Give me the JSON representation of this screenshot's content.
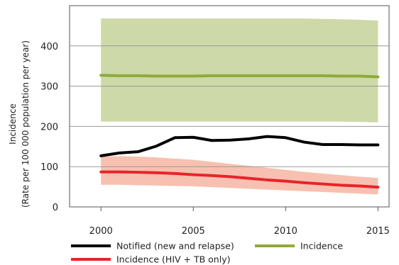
{
  "chart_data": {
    "type": "line",
    "title": "",
    "ylabel_line1": "Incidence",
    "ylabel_line2": "(Rate per 100 000 population per year)",
    "xlabel": "",
    "xlim": [
      1998.3,
      2015.6
    ],
    "ylim": [
      0,
      500
    ],
    "xticks": [
      2000,
      2005,
      2010,
      2015
    ],
    "yticks": [
      0,
      100,
      200,
      300,
      400
    ],
    "grid": "horizontal",
    "legend_position": "bottom",
    "colors": {
      "incidence_band": "#cdd9a8",
      "incidence_line": "#8faa3a",
      "notified_line": "#000000",
      "hivtb_band": "#f8c0b0",
      "hivtb_line": "#e8242a",
      "grid": "#999999",
      "axis": "#555555"
    },
    "years": [
      2000,
      2001,
      2002,
      2003,
      2004,
      2005,
      2006,
      2007,
      2008,
      2009,
      2010,
      2011,
      2012,
      2013,
      2014,
      2015
    ],
    "series": [
      {
        "name": "Incidence",
        "key": "incidence",
        "values": [
          327,
          326,
          326,
          325,
          325,
          325,
          326,
          326,
          326,
          326,
          326,
          326,
          326,
          325,
          325,
          323
        ],
        "lower": [
          212,
          212,
          212,
          212,
          212,
          212,
          212,
          212,
          212,
          212,
          212,
          212,
          212,
          212,
          211,
          210
        ],
        "upper": [
          468,
          468,
          468,
          468,
          468,
          468,
          468,
          468,
          468,
          468,
          468,
          468,
          467,
          466,
          465,
          463
        ]
      },
      {
        "name": "Notified (new and relapse)",
        "key": "notified",
        "values": [
          127,
          134,
          137,
          151,
          172,
          173,
          165,
          166,
          169,
          175,
          172,
          161,
          155,
          155,
          154,
          154
        ]
      },
      {
        "name": "Incidence (HIV + TB only)",
        "key": "hivtb",
        "values": [
          87,
          87,
          86,
          85,
          83,
          80,
          78,
          75,
          71,
          67,
          64,
          60,
          57,
          54,
          52,
          49
        ],
        "lower": [
          55,
          55,
          54,
          53,
          52,
          51,
          49,
          47,
          45,
          43,
          41,
          39,
          37,
          35,
          33,
          31
        ],
        "upper": [
          125,
          126,
          125,
          123,
          120,
          117,
          112,
          107,
          102,
          97,
          92,
          87,
          83,
          79,
          75,
          72
        ]
      }
    ]
  },
  "legend": {
    "notified": "Notified (new and relapse)",
    "incidence": "Incidence",
    "hivtb": "Incidence (HIV + TB only)"
  }
}
